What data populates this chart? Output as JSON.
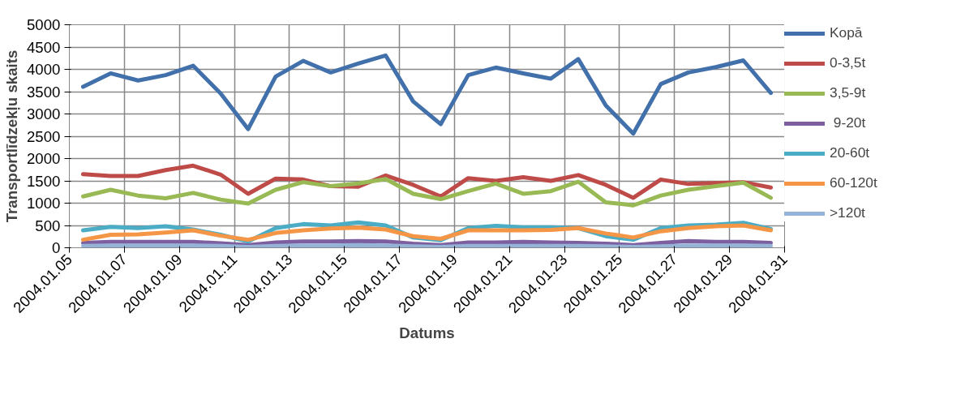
{
  "chart_data": {
    "type": "line",
    "xlabel": "Datums",
    "ylabel": "Transportlīdzekļu skaits",
    "x": [
      "2004-01-05",
      "2004-01-06",
      "2004-01-07",
      "2004-01-08",
      "2004-01-09",
      "2004-01-10",
      "2004-01-11",
      "2004-01-12",
      "2004-01-13",
      "2004-01-14",
      "2004-01-15",
      "2004-01-16",
      "2004-01-17",
      "2004-01-18",
      "2004-01-19",
      "2004-01-20",
      "2004-01-21",
      "2004-01-22",
      "2004-01-23",
      "2004-01-24",
      "2004-01-25",
      "2004-01-26",
      "2004-01-27",
      "2004-01-28",
      "2004-01-29",
      "2004-01-30"
    ],
    "series": [
      {
        "name": "Kopā",
        "color": "#4170aa",
        "values": [
          3610,
          3910,
          3750,
          3870,
          4080,
          3460,
          2660,
          3840,
          4190,
          3930,
          4130,
          4310,
          3280,
          2770,
          3870,
          4040,
          3910,
          3790,
          4230,
          3190,
          2560,
          3670,
          3930,
          4050,
          4200,
          3470
        ]
      },
      {
        "name": "0-3,5t",
        "color": "#be4b48",
        "values": [
          1650,
          1610,
          1610,
          1740,
          1840,
          1640,
          1210,
          1550,
          1530,
          1380,
          1370,
          1620,
          1410,
          1150,
          1560,
          1500,
          1580,
          1500,
          1630,
          1410,
          1120,
          1530,
          1430,
          1450,
          1470,
          1350
        ]
      },
      {
        "name": "3,5-9t",
        "color": "#98b954",
        "values": [
          1150,
          1300,
          1170,
          1110,
          1230,
          1080,
          990,
          1300,
          1470,
          1380,
          1440,
          1540,
          1210,
          1090,
          1270,
          1440,
          1210,
          1270,
          1480,
          1020,
          950,
          1170,
          1300,
          1380,
          1460,
          1120
        ]
      },
      {
        "name": " 9-20t",
        "color": "#7d5fa0",
        "values": [
          110,
          130,
          130,
          130,
          130,
          100,
          60,
          120,
          140,
          140,
          150,
          140,
          90,
          60,
          120,
          120,
          130,
          120,
          110,
          90,
          60,
          110,
          150,
          130,
          130,
          110
        ]
      },
      {
        "name": "20-60t",
        "color": "#4aacc5",
        "values": [
          390,
          470,
          440,
          480,
          410,
          290,
          140,
          440,
          530,
          500,
          570,
          500,
          230,
          170,
          440,
          490,
          460,
          460,
          440,
          260,
          180,
          440,
          500,
          520,
          560,
          420
        ]
      },
      {
        "name": "60-120t",
        "color": "#f59646",
        "values": [
          180,
          290,
          300,
          340,
          390,
          270,
          180,
          330,
          390,
          430,
          450,
          410,
          260,
          200,
          390,
          390,
          390,
          400,
          440,
          320,
          230,
          370,
          440,
          480,
          500,
          390
        ]
      },
      {
        "name": ">120t",
        "color": "#95b3d7",
        "values": [
          40,
          50,
          50,
          50,
          50,
          40,
          20,
          40,
          50,
          50,
          60,
          50,
          30,
          20,
          40,
          40,
          40,
          40,
          40,
          30,
          20,
          30,
          50,
          50,
          50,
          40
        ]
      }
    ],
    "xlim": [
      "2004-01-04T12:00",
      "2004-01-30T12:00"
    ],
    "xticks": [
      {
        "value": "2004-01-04T12:00",
        "label": "2004.01.05"
      },
      {
        "value": "2004-01-06T12:00",
        "label": "2004.01.07"
      },
      {
        "value": "2004-01-08T12:00",
        "label": "2004.01.09"
      },
      {
        "value": "2004-01-10T12:00",
        "label": "2004.01.11"
      },
      {
        "value": "2004-01-12T12:00",
        "label": "2004.01.13"
      },
      {
        "value": "2004-01-14T12:00",
        "label": "2004.01.15"
      },
      {
        "value": "2004-01-16T12:00",
        "label": "2004.01.17"
      },
      {
        "value": "2004-01-18T12:00",
        "label": "2004.01.19"
      },
      {
        "value": "2004-01-20T12:00",
        "label": "2004.01.21"
      },
      {
        "value": "2004-01-22T12:00",
        "label": "2004.01.23"
      },
      {
        "value": "2004-01-24T12:00",
        "label": "2004.01.25"
      },
      {
        "value": "2004-01-26T12:00",
        "label": "2004.01.27"
      },
      {
        "value": "2004-01-28T12:00",
        "label": "2004.01.29"
      },
      {
        "value": "2004-01-30T12:00",
        "label": "2004.01.31"
      }
    ],
    "ylim": [
      0,
      5000
    ],
    "yticks": [
      0,
      500,
      1000,
      1500,
      2000,
      2500,
      3000,
      3500,
      4000,
      4500,
      5000
    ],
    "grid": true,
    "legend": "right",
    "marker": "none",
    "line_style": "solid"
  }
}
